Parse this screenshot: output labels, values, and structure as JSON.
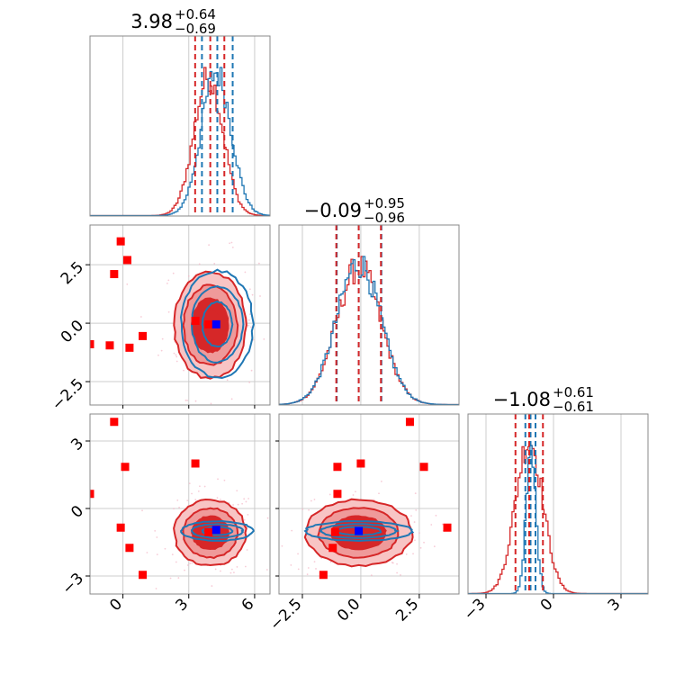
{
  "colors": {
    "red": "#d62728",
    "red_light": "#ef9a9a",
    "blue": "#1f77b4",
    "marker_red": "#ff0000",
    "marker_blue": "#0000ff",
    "grid": "#cccccc",
    "axes": "#888888"
  },
  "chart_data": {
    "type": "corner",
    "parameters": [
      {
        "title_value": "3.98",
        "title_plus": "+0.64",
        "title_minus": "−0.69",
        "range": [
          -1.5,
          6.7
        ],
        "ticks": [
          {
            "v": 0,
            "label": "0"
          },
          {
            "v": 3,
            "label": "3"
          },
          {
            "v": 6,
            "label": "6"
          }
        ]
      },
      {
        "title_value": "−0.09",
        "title_plus": "+0.95",
        "title_minus": "−0.96",
        "range": [
          -3.5,
          4.2
        ],
        "ticks": [
          {
            "v": -2.5,
            "label": "−2.5"
          },
          {
            "v": 0.0,
            "label": "0.0"
          },
          {
            "v": 2.5,
            "label": "2.5"
          }
        ]
      },
      {
        "title_value": "−1.08",
        "title_plus": "+0.61",
        "title_minus": "−0.61",
        "range": [
          -3.8,
          4.2
        ],
        "ticks": [
          {
            "v": -3,
            "label": "−3"
          },
          {
            "v": 0,
            "label": "0"
          },
          {
            "v": 3,
            "label": "3"
          }
        ]
      }
    ],
    "diagonal": [
      {
        "red": {
          "mean": 3.9,
          "sd": 0.66
        },
        "blue": {
          "mean": 4.25,
          "sd": 0.68
        },
        "quantiles_red": [
          3.29,
          3.98,
          4.62
        ],
        "quantiles_blue": [
          3.6,
          4.3,
          5.0
        ]
      },
      {
        "red": {
          "mean": -0.09,
          "sd": 0.95
        },
        "blue": {
          "mean": -0.09,
          "sd": 0.95
        },
        "quantiles_red": [
          -1.05,
          -0.09,
          0.86
        ],
        "quantiles_blue": [
          -1.03,
          -0.09,
          0.88
        ]
      },
      {
        "red": {
          "mean": -1.08,
          "sd": 0.61
        },
        "blue": {
          "mean": -1.0,
          "sd": 0.22
        },
        "quantiles_red": [
          -1.69,
          -1.08,
          -0.47
        ],
        "quantiles_blue": [
          -1.25,
          -1.02,
          -0.8
        ]
      }
    ],
    "contours_2d": {
      "1,0": {
        "red": {
          "cx": 3.98,
          "cy": -0.09,
          "sx": 0.68,
          "sy": 0.95
        },
        "blue": {
          "cx": 4.3,
          "cy": -0.05,
          "sx": 0.68,
          "sy": 0.95
        }
      },
      "2,0": {
        "red": {
          "cx": 3.98,
          "cy": -1.08,
          "sx": 0.68,
          "sy": 0.61
        },
        "blue": {
          "cx": 4.3,
          "cy": -1.0,
          "sx": 0.68,
          "sy": 0.18
        }
      },
      "2,1": {
        "red": {
          "cx": -0.09,
          "cy": -1.08,
          "sx": 0.95,
          "sy": 0.61
        },
        "blue": {
          "cx": -0.09,
          "cy": -1.0,
          "sx": 0.95,
          "sy": 0.18
        }
      }
    },
    "markers": {
      "1,0": {
        "red": [
          [
            -1.5,
            -0.9
          ],
          [
            -0.6,
            -0.95
          ],
          [
            -0.1,
            3.5
          ],
          [
            0.2,
            2.7
          ],
          [
            -0.4,
            2.1
          ],
          [
            0.3,
            -1.05
          ],
          [
            0.9,
            -0.55
          ],
          [
            3.3,
            0.1
          ],
          [
            3.9,
            -0.05
          ]
        ],
        "blue": [
          [
            4.25,
            -0.05
          ]
        ]
      },
      "2,0": {
        "red": [
          [
            -1.5,
            0.65
          ],
          [
            -0.4,
            3.85
          ],
          [
            0.1,
            1.85
          ],
          [
            -0.1,
            -0.85
          ],
          [
            0.3,
            -1.75
          ],
          [
            0.9,
            -2.95
          ],
          [
            3.3,
            2.0
          ],
          [
            3.9,
            -1.05
          ]
        ],
        "blue": [
          [
            4.25,
            -0.95
          ]
        ]
      },
      "2,1": {
        "red": [
          [
            -1.0,
            0.65
          ],
          [
            -1.0,
            1.85
          ],
          [
            0.0,
            2.0
          ],
          [
            2.1,
            3.85
          ],
          [
            2.7,
            1.85
          ],
          [
            3.7,
            -0.85
          ],
          [
            -1.2,
            -1.75
          ],
          [
            -1.6,
            -2.95
          ],
          [
            -1.1,
            -1.05
          ]
        ],
        "blue": [
          [
            -0.09,
            -1.0
          ]
        ]
      }
    }
  }
}
